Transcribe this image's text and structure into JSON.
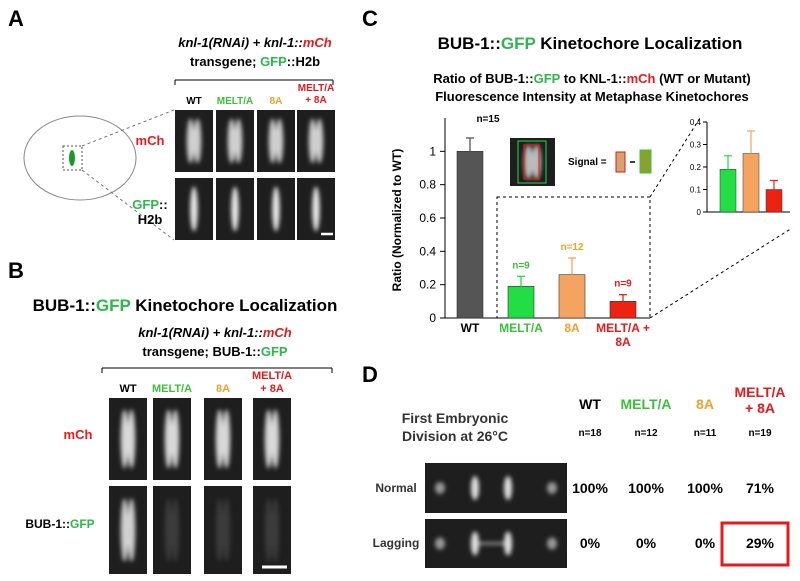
{
  "panel_a": {
    "label": "A",
    "title_line1": [
      "knl-1(RNAi) + knl-1::",
      "mCh"
    ],
    "title_line2": [
      "transgene; ",
      "GFP",
      "::H2b"
    ],
    "columns": [
      "WT",
      "MELT/A",
      "8A",
      "MELT/A + 8A"
    ],
    "row_1": "mCh",
    "row_2": [
      "GFP",
      "::",
      "H2b"
    ]
  },
  "panel_b": {
    "label": "B",
    "title": [
      "BUB-1::",
      "GFP",
      " Kinetochore Localization"
    ],
    "subtitle_line1": [
      "knl-1(RNAi) + knl-1::",
      "mCh"
    ],
    "subtitle_line2": [
      "transgene; BUB-1::",
      "GFP"
    ],
    "columns": [
      "WT",
      "MELT/A",
      "8A",
      "MELT/A + 8A"
    ],
    "row_1": "mCh",
    "row_2": [
      "BUB-1::",
      "GFP"
    ]
  },
  "panel_c": {
    "label": "C",
    "title": [
      "BUB-1::",
      "GFP",
      " Kinetochore Localization"
    ],
    "signal_label": "Signal ="
  },
  "chart_data": {
    "type": "bar",
    "title_line1": [
      "Ratio of BUB-1::",
      "GFP",
      " to KNL-1::",
      "mCh",
      " (WT or Mutant)"
    ],
    "title_line2": "Fluorescence Intensity at Metaphase Kinetochores",
    "ylabel": "Ratio (Normalized to WT)",
    "categories": [
      "WT",
      "MELT/A",
      "8A",
      "MELT/A + 8A"
    ],
    "colors": [
      "#555555",
      "#22dd44",
      "#f4a460",
      "#ee2211"
    ],
    "label_colors": [
      "#000000",
      "#3cbf3c",
      "#f0a030",
      "#e41a1c"
    ],
    "values": [
      1.0,
      0.19,
      0.26,
      0.1
    ],
    "errors": [
      0.08,
      0.06,
      0.1,
      0.04
    ],
    "n_labels": [
      "n=15",
      "n=9",
      "n=12",
      "n=9"
    ],
    "ylim": [
      0,
      1.2
    ],
    "yticks": [
      0,
      0.2,
      0.4,
      0.6,
      0.8,
      1
    ],
    "inset_ylim": [
      0,
      0.4
    ],
    "inset_yticks": [
      0,
      0.1,
      0.2,
      0.3,
      0.4
    ]
  },
  "panel_d": {
    "label": "D",
    "title_line1": "First Embryonic",
    "title_line2": "Division at 26°C",
    "columns": [
      "WT",
      "MELT/A",
      "8A",
      "MELT/A + 8A"
    ],
    "n": [
      "n=18",
      "n=12",
      "n=11",
      "n=19"
    ],
    "rows": [
      {
        "label": "Normal",
        "values": [
          "100%",
          "100%",
          "100%",
          "71%"
        ]
      },
      {
        "label": "Lagging",
        "values": [
          "0%",
          "0%",
          "0%",
          "29%"
        ]
      }
    ]
  }
}
